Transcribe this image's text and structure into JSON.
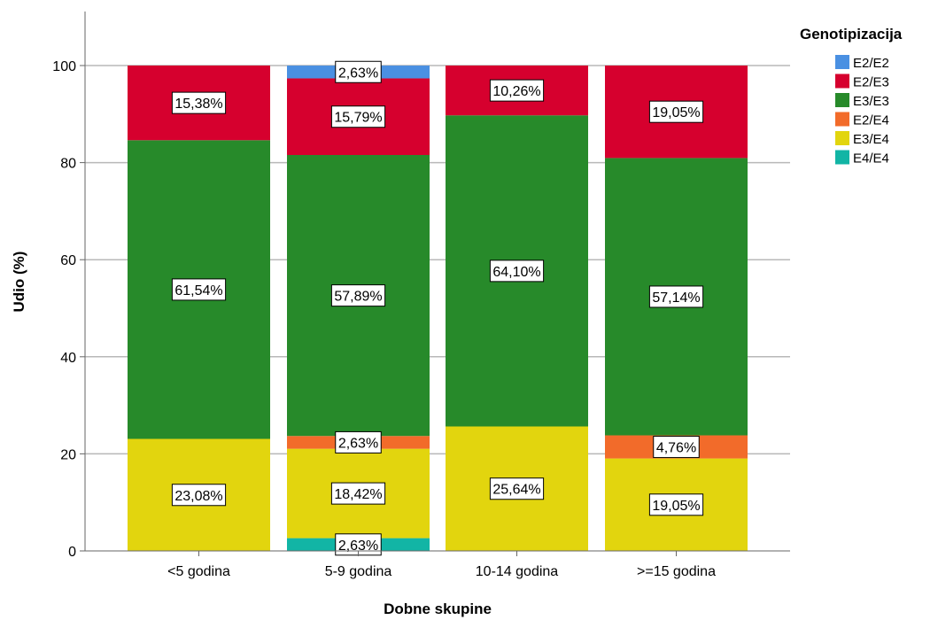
{
  "chart_data": {
    "type": "bar",
    "stacked": true,
    "categories": [
      "<5 godina",
      "5-9 godina",
      "10-14 godina",
      ">=15 godina"
    ],
    "series": [
      {
        "name": "E4/E4",
        "color": "#12b5a5",
        "values": [
          0,
          2.63,
          0,
          0
        ],
        "labels": [
          "",
          "2,63%",
          "",
          ""
        ]
      },
      {
        "name": "E3/E4",
        "color": "#e2d50e",
        "values": [
          23.08,
          18.42,
          25.64,
          19.05
        ],
        "labels": [
          "23,08%",
          "18,42%",
          "25,64%",
          "19,05%"
        ]
      },
      {
        "name": "E2/E4",
        "color": "#f26b2a",
        "values": [
          0,
          2.63,
          0,
          4.76
        ],
        "labels": [
          "",
          "2,63%",
          "",
          "4,76%"
        ]
      },
      {
        "name": "E3/E3",
        "color": "#278a2a",
        "values": [
          61.54,
          57.89,
          64.1,
          57.14
        ],
        "labels": [
          "61,54%",
          "57,89%",
          "64,10%",
          "57,14%"
        ]
      },
      {
        "name": "E2/E3",
        "color": "#d6002e",
        "values": [
          15.38,
          15.79,
          10.26,
          19.05
        ],
        "labels": [
          "15,38%",
          "15,79%",
          "10,26%",
          "19,05%"
        ]
      },
      {
        "name": "E2/E2",
        "color": "#4a90e2",
        "values": [
          0,
          2.63,
          0,
          0
        ],
        "labels": [
          "",
          "2,63%",
          "",
          ""
        ]
      }
    ],
    "legend_title": "Genotipizacija",
    "legend_order": [
      "E2/E2",
      "E2/E3",
      "E3/E3",
      "E2/E4",
      "E3/E4",
      "E4/E4"
    ],
    "legend_position": "top-right",
    "xlabel": "Dobne skupine",
    "ylabel": "Udio (%)",
    "ylim": [
      0,
      110
    ],
    "yticks": [
      0,
      20,
      40,
      60,
      80,
      100
    ],
    "grid": "horizontal"
  }
}
